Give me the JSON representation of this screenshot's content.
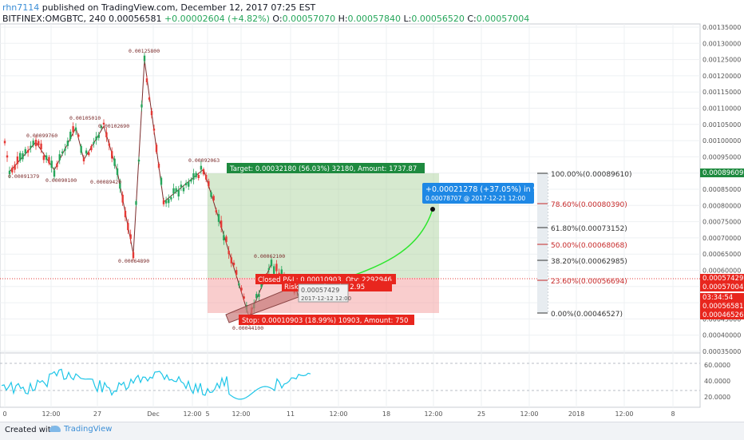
{
  "header": {
    "user": "rhn7114",
    "published": "published on TradingView.com, December 12, 2017 07:25 EST",
    "symbol": "BITFINEX:OMGBTC, 240",
    "last": "0.00056581",
    "change": "+0.00002604 (+4.82%)",
    "o_label": "O:",
    "o": "0.00057070",
    "h_label": "H:",
    "h": "0.00057840",
    "l_label": "L:",
    "l": "0.00056520",
    "c_label": "C:",
    "c": "0.00057004"
  },
  "price_axis": [
    "0.00135000",
    "0.00130000",
    "0.00125000",
    "0.00120000",
    "0.00115000",
    "0.00110000",
    "0.00105000",
    "0.00100000",
    "0.00095000",
    "0.00090000",
    "0.00085000",
    "0.00080000",
    "0.00075000",
    "0.00070000",
    "0.00065000",
    "0.00060000",
    "0.00055000",
    "0.00050000",
    "0.00045000",
    "0.00040000",
    "0.00035000"
  ],
  "price_tags": {
    "target": "0.00089609",
    "current": "0.00057429",
    "close": "0.00057004",
    "countdown": "03:34:54",
    "last": "0.00056581",
    "stop": "0.00046526"
  },
  "rsi_axis": [
    "60.0000",
    "40.0000",
    "20.0000"
  ],
  "time_axis": [
    "0",
    "12:00",
    "27",
    "Dec",
    "12:00",
    "5",
    "12:00",
    "11",
    "12:00",
    "18",
    "12:00",
    "25",
    "12:00",
    "2018",
    "12:00",
    "8"
  ],
  "zigzag_labels": [
    "0.00125800",
    "0.00105010",
    "0.00099760",
    "0.00102690",
    "0.00092063",
    "0.00091379",
    "0.00090100",
    "0.00089420",
    "0.00064890",
    "0.00062100",
    "0.00044100"
  ],
  "position": {
    "target": "Target: 0.00032180 (56.03%) 32180, Amount: 1737.87",
    "stop": "Stop: 0.00010903 (18.99%) 10903, Amount: 750",
    "closed": "Closed P&L: 0.00010903, Qty: 2292946",
    "risk": "Risk/Reward Ratio: 2.95",
    "cursor_price": "0.00057429",
    "cursor_date": "2017-12-12 12:00"
  },
  "projection": {
    "line1": "+0.00021278 (+37.05%) in 9d",
    "line2": "0.00078707  @ 2017-12-21  12:00"
  },
  "fib": [
    "100.00%(0.00089610)",
    "78.60%(0.00080390)",
    "61.80%(0.00073152)",
    "50.00%(0.00068068)",
    "38.20%(0.00062985)",
    "23.60%(0.00056694)",
    "0.00%(0.00046527)"
  ],
  "footer": {
    "created": "Created with",
    "brand": "TradingView"
  },
  "colors": {
    "up": "#26a65b",
    "down": "#e53935",
    "accent": "#2196f3",
    "fib_red": "#c62828",
    "fib_dark": "#333333"
  }
}
